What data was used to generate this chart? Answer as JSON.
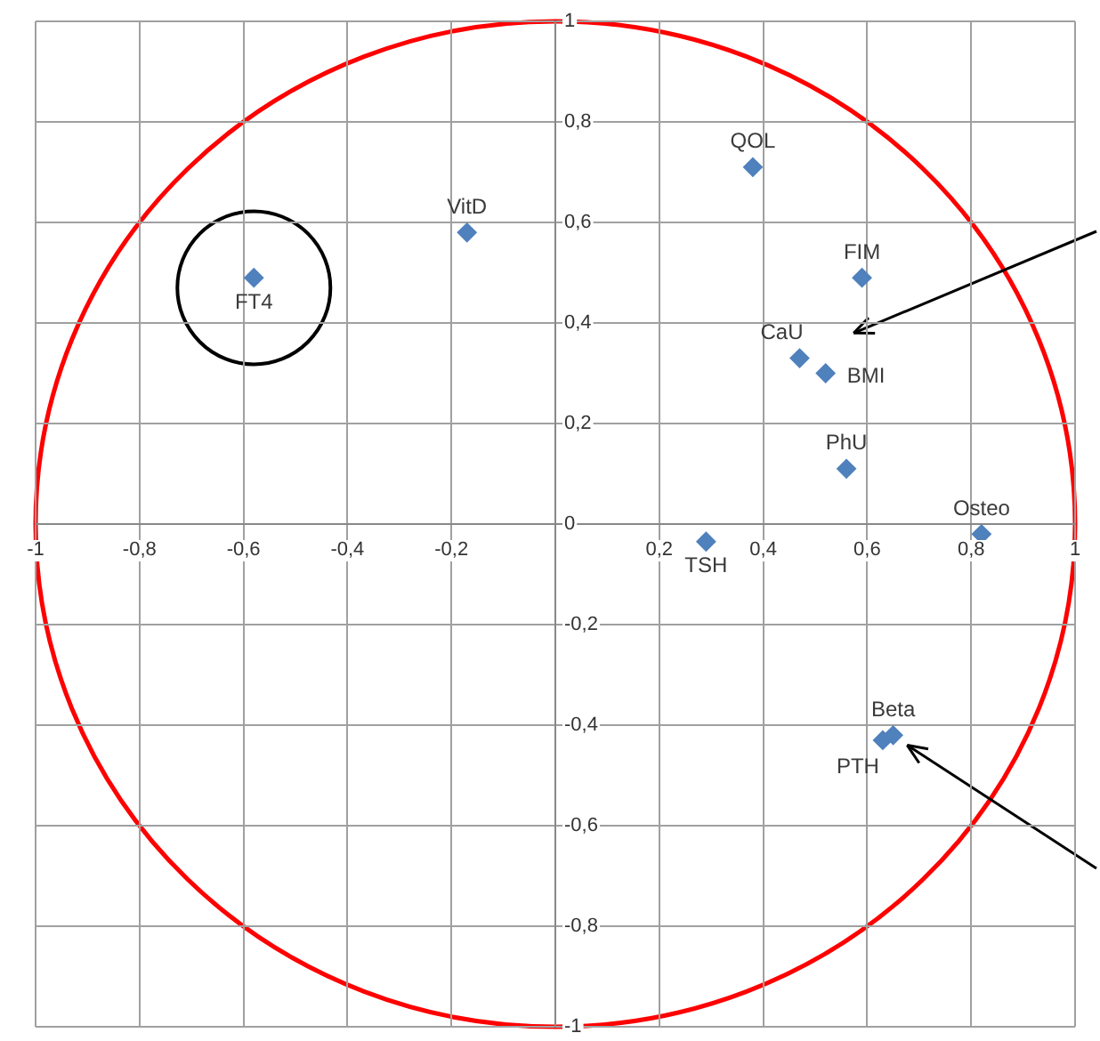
{
  "chart_data": {
    "type": "scatter",
    "marker": "diamond",
    "grid": true,
    "legend": false,
    "xlim": [
      -1,
      1
    ],
    "ylim": [
      -1,
      1
    ],
    "xticks": [
      {
        "value": -1,
        "label": "-1"
      },
      {
        "value": -0.8,
        "label": "-0,8"
      },
      {
        "value": -0.6,
        "label": "-0,6"
      },
      {
        "value": -0.4,
        "label": "-0,4"
      },
      {
        "value": -0.2,
        "label": "-0,2"
      },
      {
        "value": 0,
        "label": null
      },
      {
        "value": 0.2,
        "label": "0,2"
      },
      {
        "value": 0.4,
        "label": "0,4"
      },
      {
        "value": 0.6,
        "label": "0,6"
      },
      {
        "value": 0.8,
        "label": "0,8"
      },
      {
        "value": 1,
        "label": "1"
      }
    ],
    "yticks": [
      {
        "value": -1,
        "label": "-1"
      },
      {
        "value": -0.8,
        "label": "-0,8"
      },
      {
        "value": -0.6,
        "label": "-0,6"
      },
      {
        "value": -0.4,
        "label": "-0,4"
      },
      {
        "value": -0.2,
        "label": "-0,2"
      },
      {
        "value": 0,
        "label": "0"
      },
      {
        "value": 0.2,
        "label": "0,2"
      },
      {
        "value": 0.4,
        "label": "0,4"
      },
      {
        "value": 0.6,
        "label": "0,6"
      },
      {
        "value": 0.8,
        "label": "0,8"
      },
      {
        "value": 1,
        "label": "1"
      }
    ],
    "series": [
      {
        "name": "QOL",
        "color": "#4f81bd",
        "x": [
          0.38
        ],
        "values": [
          0.71
        ]
      },
      {
        "name": "VitD",
        "color": "#4f81bd",
        "x": [
          -0.17
        ],
        "values": [
          0.58
        ]
      },
      {
        "name": "FT4",
        "color": "#4f81bd",
        "x": [
          -0.58
        ],
        "values": [
          0.49
        ]
      },
      {
        "name": "FIM",
        "color": "#4f81bd",
        "x": [
          0.59
        ],
        "values": [
          0.49
        ]
      },
      {
        "name": "CaU",
        "color": "#4f81bd",
        "x": [
          0.47
        ],
        "values": [
          0.33
        ]
      },
      {
        "name": "BMI",
        "color": "#4f81bd",
        "x": [
          0.52
        ],
        "values": [
          0.3
        ]
      },
      {
        "name": "PhU",
        "color": "#4f81bd",
        "x": [
          0.56
        ],
        "values": [
          0.11
        ]
      },
      {
        "name": "Osteo",
        "color": "#4f81bd",
        "x": [
          0.82
        ],
        "values": [
          -0.02
        ]
      },
      {
        "name": "TSH",
        "color": "#4f81bd",
        "x": [
          0.29
        ],
        "values": [
          -0.035
        ]
      },
      {
        "name": "Beta",
        "color": "#4f81bd",
        "x": [
          0.65
        ],
        "values": [
          -0.42
        ]
      },
      {
        "name": "PTH",
        "color": "#4f81bd",
        "x": [
          0.63
        ],
        "values": [
          -0.43
        ]
      }
    ]
  }
}
